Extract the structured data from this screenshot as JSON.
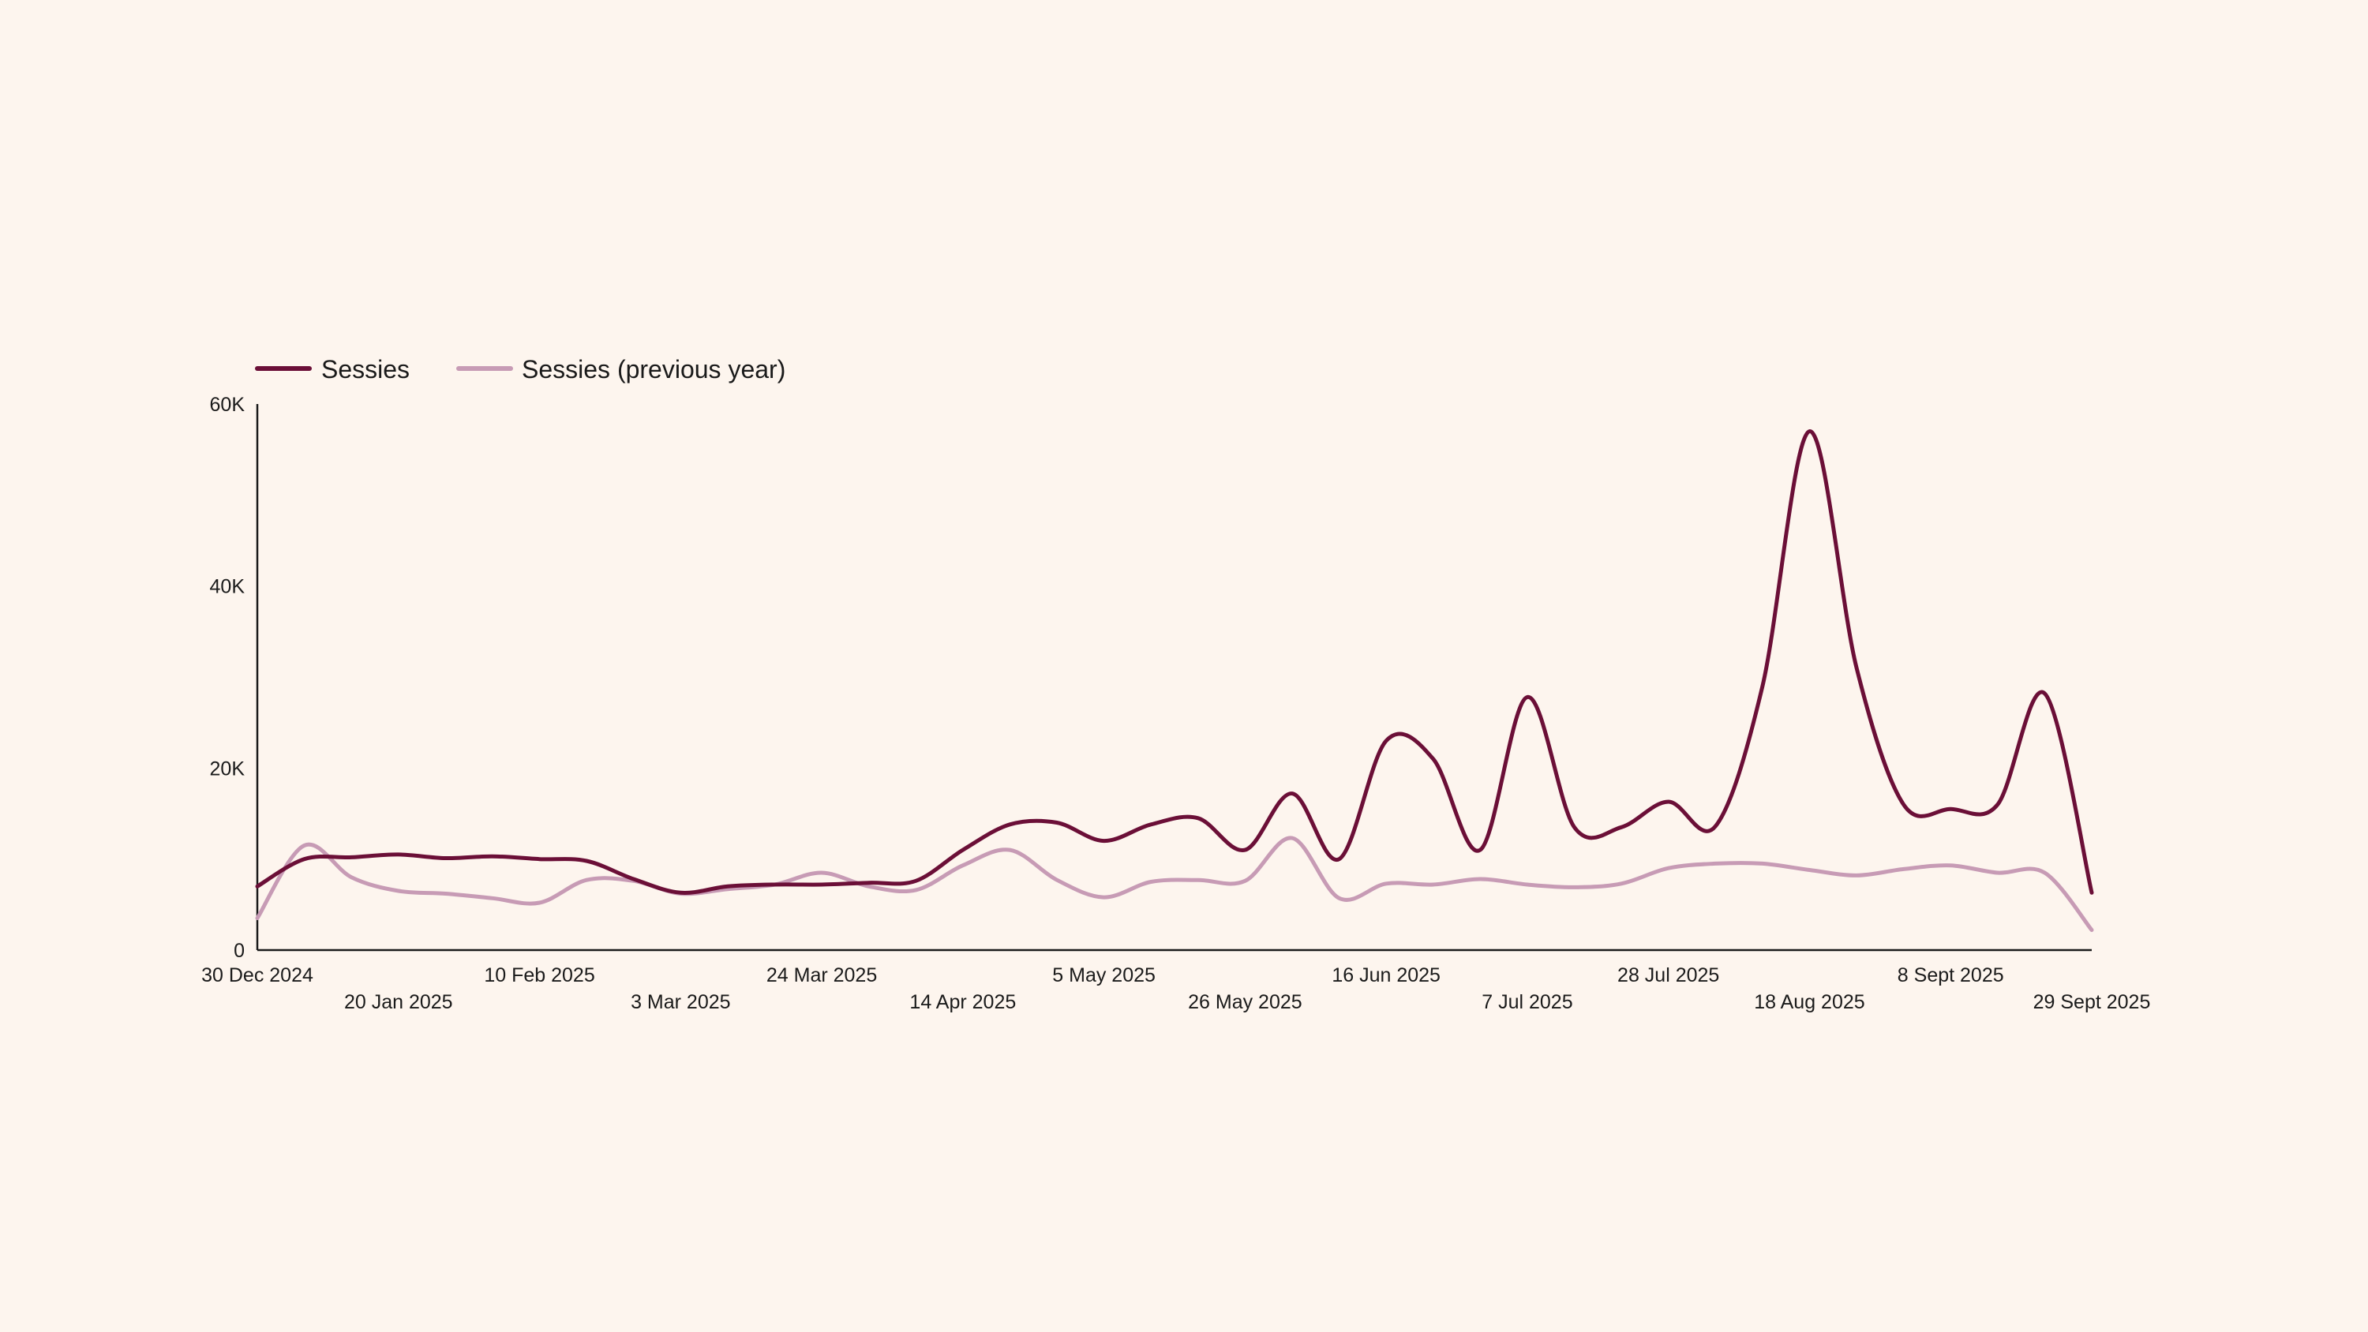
{
  "colors": {
    "background": "#fdf5ee",
    "sessions": "#6b0f37",
    "sessions_previous_year": "#c79bb5",
    "axis": "#1a1a1a"
  },
  "chart_data": {
    "type": "line",
    "title": "",
    "xlabel": "",
    "ylabel": "",
    "ylim": [
      0,
      60000
    ],
    "grid": false,
    "legend_position": "top-left",
    "y_ticks": [
      {
        "value": 0,
        "label": "0"
      },
      {
        "value": 20000,
        "label": "20K"
      },
      {
        "value": 40000,
        "label": "40K"
      },
      {
        "value": 60000,
        "label": "60K"
      }
    ],
    "x": [
      "30 Dec 2024",
      "6 Jan 2025",
      "13 Jan 2025",
      "20 Jan 2025",
      "27 Jan 2025",
      "3 Feb 2025",
      "10 Feb 2025",
      "17 Feb 2025",
      "24 Feb 2025",
      "3 Mar 2025",
      "10 Mar 2025",
      "17 Mar 2025",
      "24 Mar 2025",
      "31 Mar 2025",
      "7 Apr 2025",
      "14 Apr 2025",
      "21 Apr 2025",
      "28 Apr 2025",
      "5 May 2025",
      "12 May 2025",
      "19 May 2025",
      "26 May 2025",
      "2 Jun 2025",
      "9 Jun 2025",
      "16 Jun 2025",
      "23 Jun 2025",
      "30 Jun 2025",
      "7 Jul 2025",
      "14 Jul 2025",
      "21 Jul 2025",
      "28 Jul 2025",
      "4 Aug 2025",
      "11 Aug 2025",
      "18 Aug 2025",
      "25 Aug 2025",
      "1 Sept 2025",
      "8 Sept 2025",
      "15 Sept 2025",
      "22 Sept 2025",
      "29 Sept 2025"
    ],
    "x_tick_labels": [
      {
        "index": 0,
        "label": "30 Dec 2024",
        "row": 0
      },
      {
        "index": 3,
        "label": "20 Jan 2025",
        "row": 1
      },
      {
        "index": 6,
        "label": "10 Feb 2025",
        "row": 0
      },
      {
        "index": 9,
        "label": "3 Mar 2025",
        "row": 1
      },
      {
        "index": 12,
        "label": "24 Mar 2025",
        "row": 0
      },
      {
        "index": 15,
        "label": "14 Apr 2025",
        "row": 1
      },
      {
        "index": 18,
        "label": "5 May 2025",
        "row": 0
      },
      {
        "index": 21,
        "label": "26 May 2025",
        "row": 1
      },
      {
        "index": 24,
        "label": "16 Jun 2025",
        "row": 0
      },
      {
        "index": 27,
        "label": "7 Jul 2025",
        "row": 1
      },
      {
        "index": 30,
        "label": "28 Jul 2025",
        "row": 0
      },
      {
        "index": 33,
        "label": "18 Aug 2025",
        "row": 1
      },
      {
        "index": 36,
        "label": "8 Sept 2025",
        "row": 0
      },
      {
        "index": 39,
        "label": "29 Sept 2025",
        "row": 1
      }
    ],
    "series": [
      {
        "name": "Sessies",
        "color": "#6b0f37",
        "values": [
          7000,
          10000,
          10200,
          10500,
          10100,
          10300,
          10000,
          9800,
          7800,
          6300,
          7000,
          7200,
          7200,
          7400,
          7600,
          11000,
          13800,
          14000,
          12000,
          13800,
          14500,
          11000,
          17200,
          10000,
          23000,
          21000,
          11000,
          27800,
          13500,
          13500,
          16300,
          13600,
          29000,
          57000,
          31000,
          16000,
          15500,
          16000,
          28200,
          6300
        ]
      },
      {
        "name": "Sessies (previous year)",
        "color": "#c79bb5",
        "values": [
          3500,
          11500,
          8000,
          6500,
          6200,
          5700,
          5200,
          7700,
          7600,
          6200,
          6700,
          7200,
          8500,
          7000,
          6600,
          9300,
          11000,
          7700,
          5800,
          7500,
          7700,
          7600,
          12300,
          5700,
          7300,
          7200,
          7800,
          7200,
          6900,
          7300,
          9000,
          9500,
          9500,
          8800,
          8200,
          8900,
          9300,
          8500,
          8500,
          2200
        ]
      }
    ]
  }
}
